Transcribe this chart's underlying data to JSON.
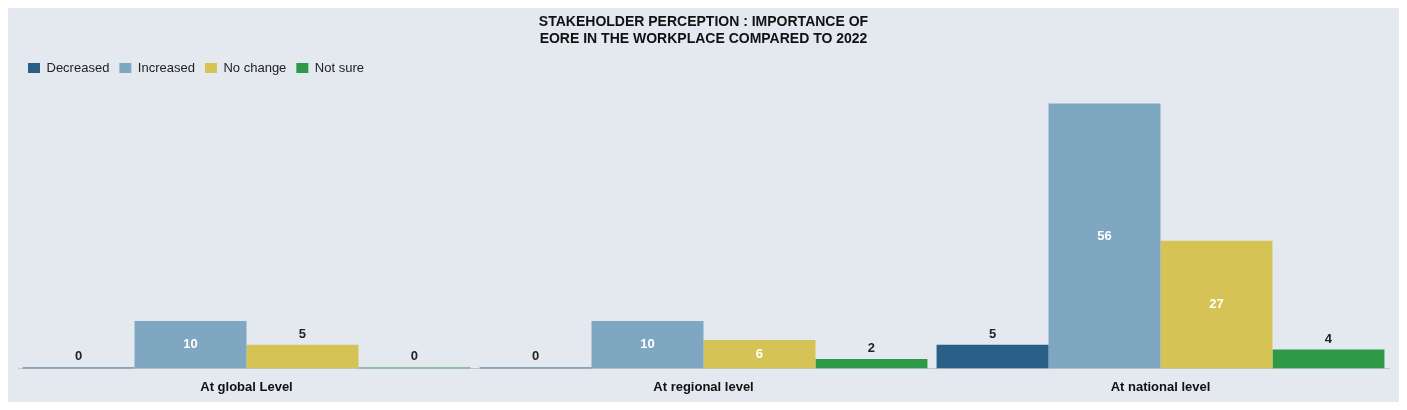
{
  "chart_data": {
    "type": "bar",
    "title": "STAKEHOLDER PERCEPTION : IMPORTANCE OF EORE IN THE WORKPLACE COMPARED TO 2022",
    "categories": [
      "At global Level",
      "At regional level",
      "At national level"
    ],
    "series": [
      {
        "name": "Decreased",
        "color": "#2a6088",
        "values": [
          0,
          0,
          5
        ]
      },
      {
        "name": "Increased",
        "color": "#7fa7c2",
        "values": [
          10,
          10,
          56
        ]
      },
      {
        "name": "No change",
        "color": "#d6c355",
        "values": [
          5,
          6,
          27
        ]
      },
      {
        "name": "Not sure",
        "color": "#2e9a47",
        "values": [
          0,
          2,
          4
        ]
      }
    ],
    "data_labels": true,
    "legend": "top left",
    "grid": false
  }
}
